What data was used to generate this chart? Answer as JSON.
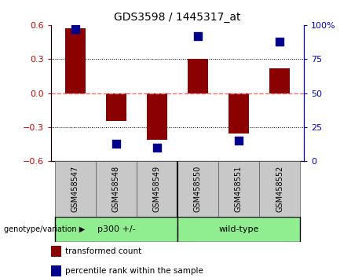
{
  "title": "GDS3598 / 1445317_at",
  "samples": [
    "GSM458547",
    "GSM458548",
    "GSM458549",
    "GSM458550",
    "GSM458551",
    "GSM458552"
  ],
  "bar_values": [
    0.57,
    -0.245,
    -0.41,
    0.305,
    -0.355,
    0.22
  ],
  "percentile_values": [
    97,
    13,
    10,
    92,
    15,
    88
  ],
  "group_boundaries": [
    3
  ],
  "group_labels": [
    "p300 +/-",
    "wild-type"
  ],
  "group_color": "#90EE90",
  "genotype_label": "genotype/variation",
  "ylim": [
    -0.6,
    0.6
  ],
  "y2lim": [
    0,
    100
  ],
  "yticks": [
    -0.6,
    -0.3,
    0,
    0.3,
    0.6
  ],
  "y2ticks": [
    0,
    25,
    50,
    75,
    100
  ],
  "bar_color": "#8B0000",
  "percentile_color": "#00008B",
  "zero_line_color": "#FF6666",
  "grid_color": "black",
  "plot_bg": "white",
  "tick_label_color_left": "#CC0000",
  "tick_label_color_right": "#0000CC",
  "legend_bar_label": "transformed count",
  "legend_pct_label": "percentile rank within the sample",
  "bar_width": 0.5,
  "marker_size": 55,
  "sample_box_color": "#C8C8C8",
  "title_fontsize": 10,
  "tick_fontsize": 8,
  "label_fontsize": 7,
  "group_fontsize": 8
}
